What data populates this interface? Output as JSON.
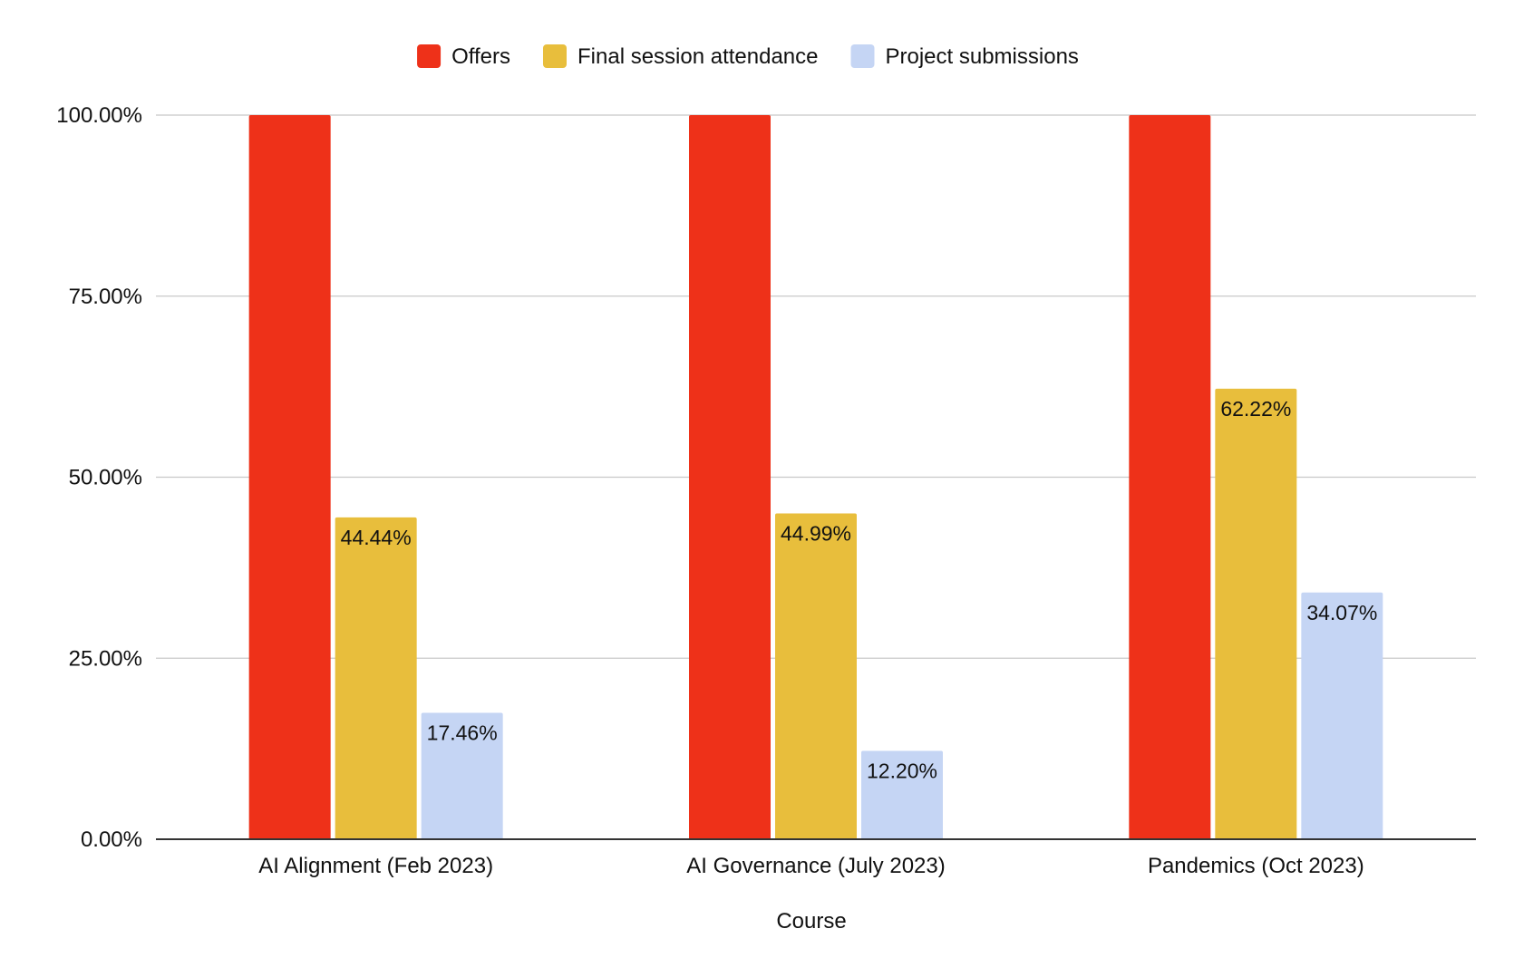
{
  "chart_data": {
    "type": "bar",
    "title": "",
    "xlabel": "Course",
    "ylabel": "",
    "categories": [
      "AI Alignment (Feb 2023)",
      "AI Governance (July 2023)",
      "Pandemics (Oct 2023)"
    ],
    "series": [
      {
        "name": "Offers",
        "color": "#ee3119",
        "values": [
          100.0,
          100.0,
          100.0
        ],
        "labels": [
          "",
          "",
          ""
        ]
      },
      {
        "name": "Final session attendance",
        "color": "#e8be3c",
        "values": [
          44.44,
          44.99,
          62.22
        ],
        "labels": [
          "44.44%",
          "44.99%",
          "62.22%"
        ]
      },
      {
        "name": "Project submissions",
        "color": "#c5d5f4",
        "values": [
          17.46,
          12.2,
          34.07
        ],
        "labels": [
          "17.46%",
          "12.20%",
          "34.07%"
        ]
      }
    ],
    "ylim": [
      0,
      100
    ],
    "yticks": [
      0,
      25,
      50,
      75,
      100
    ],
    "ytick_labels": [
      "0.00%",
      "25.00%",
      "50.00%",
      "75.00%",
      "100.00%"
    ],
    "grid": true,
    "legend_position": "top-center"
  }
}
